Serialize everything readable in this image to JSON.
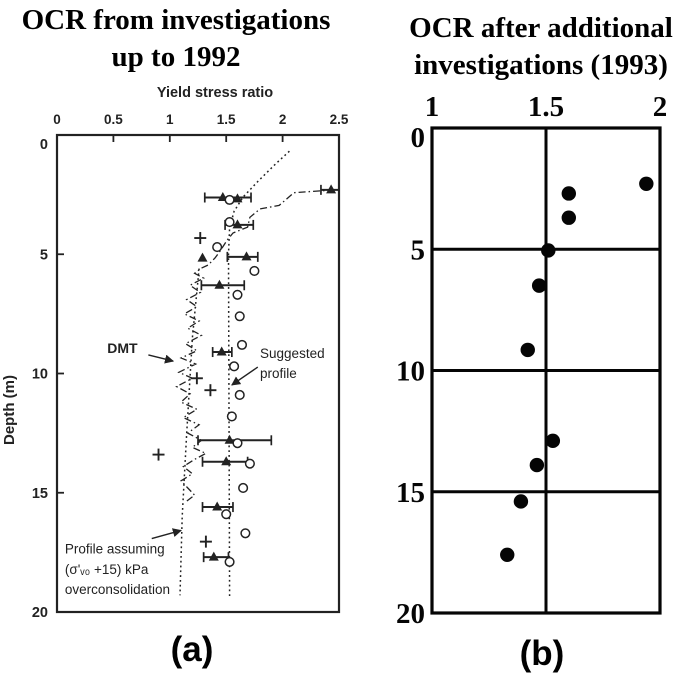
{
  "page": {
    "background": "#ffffff",
    "panel_a_ink": "#222222",
    "panel_b_ink": "#050505"
  },
  "chart_data": [
    {
      "panel": "a",
      "type": "scatter",
      "title_lines": [
        "OCR from investigations",
        "up to 1992"
      ],
      "caption": "(a)",
      "xlabel": "Yield stress ratio",
      "ylabel": "Depth (m)",
      "xlim": [
        0,
        2.5
      ],
      "ylim": [
        0,
        20
      ],
      "x_ticks": [
        0,
        0.5,
        1,
        1.5,
        2,
        2.5
      ],
      "y_ticks": [
        0,
        5,
        10,
        15,
        20
      ],
      "grid": false,
      "legend": "none",
      "series": [
        {
          "name": "oedometer-triangles",
          "marker": "triangle-filled",
          "error_bars": true,
          "points": [
            [
              1.47,
              2.62,
              1.31,
              1.72
            ],
            [
              1.6,
              2.68,
              null,
              null
            ],
            [
              2.43,
              2.3,
              2.34,
              2.5
            ],
            [
              1.6,
              3.77,
              1.49,
              1.74
            ],
            [
              1.68,
              5.11,
              1.51,
              1.78
            ],
            [
              1.29,
              5.16,
              null,
              null
            ],
            [
              1.44,
              6.3,
              1.28,
              1.66
            ],
            [
              1.46,
              9.1,
              1.38,
              1.55
            ],
            [
              1.53,
              12.8,
              1.25,
              1.9
            ],
            [
              1.5,
              13.7,
              1.29,
              1.69
            ],
            [
              1.42,
              15.6,
              1.29,
              1.56
            ],
            [
              1.39,
              17.7,
              1.3,
              1.52
            ]
          ]
        },
        {
          "name": "plus-symbols",
          "marker": "plus",
          "points": [
            [
              1.27,
              4.32
            ],
            [
              1.24,
              10.2
            ],
            [
              1.36,
              10.7
            ],
            [
              0.9,
              13.4
            ],
            [
              1.32,
              17.05
            ]
          ]
        },
        {
          "name": "open-circles",
          "marker": "circle-open",
          "points": [
            [
              1.53,
              2.72
            ],
            [
              1.53,
              3.65
            ],
            [
              1.42,
              4.7
            ],
            [
              1.75,
              5.7
            ],
            [
              1.6,
              6.7
            ],
            [
              1.62,
              7.6
            ],
            [
              1.64,
              8.8
            ],
            [
              1.57,
              9.7
            ],
            [
              1.62,
              10.9
            ],
            [
              1.55,
              11.8
            ],
            [
              1.6,
              12.92
            ],
            [
              1.71,
              13.78
            ],
            [
              1.65,
              14.8
            ],
            [
              1.5,
              15.9
            ],
            [
              1.67,
              16.7
            ],
            [
              1.53,
              17.9
            ]
          ]
        }
      ],
      "lines": [
        {
          "name": "dmt-profile",
          "style": "dashdot",
          "points": [
            [
              2.46,
              2.3
            ],
            [
              2.1,
              2.42
            ],
            [
              1.97,
              2.95
            ],
            [
              1.8,
              3.1
            ],
            [
              1.71,
              3.45
            ],
            [
              1.69,
              3.86
            ],
            [
              1.56,
              4.11
            ],
            [
              1.51,
              4.4
            ],
            [
              1.44,
              4.91
            ],
            [
              1.4,
              5.16
            ],
            [
              1.34,
              5.45
            ],
            [
              1.28,
              5.58
            ],
            [
              1.22,
              5.8
            ],
            [
              1.3,
              6.0
            ],
            [
              1.18,
              6.3
            ],
            [
              1.27,
              6.6
            ],
            [
              1.15,
              6.9
            ],
            [
              1.24,
              7.2
            ],
            [
              1.13,
              7.5
            ],
            [
              1.26,
              7.8
            ],
            [
              1.16,
              8.1
            ],
            [
              1.28,
              8.4
            ],
            [
              1.14,
              8.75
            ],
            [
              1.24,
              9.05
            ],
            [
              1.1,
              9.35
            ],
            [
              1.23,
              9.6
            ],
            [
              1.08,
              9.95
            ],
            [
              1.2,
              10.2
            ],
            [
              1.06,
              10.55
            ],
            [
              1.18,
              10.85
            ],
            [
              1.1,
              11.2
            ],
            [
              1.24,
              11.5
            ],
            [
              1.12,
              11.85
            ],
            [
              1.26,
              12.15
            ],
            [
              1.16,
              12.5
            ],
            [
              1.28,
              12.8
            ],
            [
              1.2,
              13.1
            ],
            [
              1.32,
              13.35
            ],
            [
              1.22,
              13.6
            ],
            [
              1.12,
              13.9
            ],
            [
              1.2,
              14.2
            ],
            [
              1.1,
              14.5
            ],
            [
              1.16,
              14.8
            ],
            [
              1.22,
              15.1
            ],
            [
              1.15,
              15.35
            ]
          ]
        },
        {
          "name": "suggested-profile",
          "style": "dotted",
          "points": [
            [
              2.06,
              0.68
            ],
            [
              1.93,
              1.25
            ],
            [
              1.78,
              1.95
            ],
            [
              1.65,
              2.6
            ],
            [
              1.57,
              3.2
            ],
            [
              1.53,
              3.9
            ],
            [
              1.52,
              5.0
            ],
            [
              1.53,
              19.4
            ]
          ]
        },
        {
          "name": "assumed-profile",
          "style": "dotted",
          "points": [
            [
              1.26,
              5.6
            ],
            [
              1.2,
              8.5
            ],
            [
              1.15,
              12.5
            ],
            [
              1.11,
              16.0
            ],
            [
              1.09,
              19.3
            ]
          ]
        }
      ],
      "annotations": [
        {
          "id": "dmt-label",
          "lines": [
            "DMT"
          ],
          "x": 0.58,
          "d": 9.15,
          "anchor": "middle",
          "bold": true,
          "size": 14,
          "arrow": {
            "from": [
              0.81,
              9.22
            ],
            "to": [
              1.03,
              9.48
            ]
          }
        },
        {
          "id": "suggested-profile-label",
          "lines": [
            "Suggested",
            "profile"
          ],
          "x": 1.8,
          "d": 9.35,
          "anchor": "start",
          "bold": false,
          "size": 13.5,
          "arrow": {
            "from": [
              1.78,
              9.73
            ],
            "to": [
              1.55,
              10.48
            ]
          }
        },
        {
          "id": "assumed-profile-label",
          "lines": [
            "Profile assuming",
            "(σ'ᵥ₀ +15) kPa",
            "overconsolidation"
          ],
          "x": 0.07,
          "d": 17.55,
          "anchor": "start",
          "bold": false,
          "size": 13.5,
          "arrow": {
            "from": [
              0.84,
              16.92
            ],
            "to": [
              1.1,
              16.58
            ]
          }
        }
      ]
    },
    {
      "panel": "b",
      "type": "scatter",
      "title_lines": [
        "OCR after additional",
        "investigations (1993)"
      ],
      "caption": "(b)",
      "xlabel": "",
      "ylabel": "",
      "xlim": [
        1,
        2
      ],
      "ylim": [
        0,
        20
      ],
      "x_ticks": [
        1,
        1.5,
        2
      ],
      "y_ticks": [
        0,
        5,
        10,
        15,
        20
      ],
      "grid": true,
      "legend": "none",
      "points": [
        [
          1.94,
          2.3
        ],
        [
          1.6,
          2.7
        ],
        [
          1.6,
          3.7
        ],
        [
          1.51,
          5.05
        ],
        [
          1.47,
          6.5
        ],
        [
          1.42,
          9.15
        ],
        [
          1.53,
          12.9
        ],
        [
          1.46,
          13.9
        ],
        [
          1.39,
          15.4
        ],
        [
          1.33,
          17.6
        ]
      ]
    }
  ]
}
